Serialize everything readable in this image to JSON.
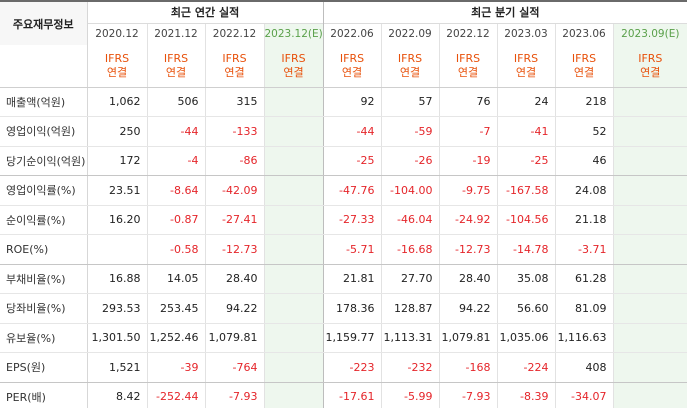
{
  "header": {
    "row_label": "주요재무정보",
    "annual_title": "최근 연간 실적",
    "quarterly_title": "최근 분기 실적",
    "periods": [
      {
        "label": "2020.12",
        "est": false
      },
      {
        "label": "2021.12",
        "est": false
      },
      {
        "label": "2022.12",
        "est": false
      },
      {
        "label": "2023.12(E)",
        "est": true
      },
      {
        "label": "2022.06",
        "est": false
      },
      {
        "label": "2022.09",
        "est": false
      },
      {
        "label": "2022.12",
        "est": false
      },
      {
        "label": "2023.03",
        "est": false
      },
      {
        "label": "2023.06",
        "est": false
      },
      {
        "label": "2023.09(E)",
        "est": true
      }
    ],
    "accounting_line1": "IFRS",
    "accounting_line2": "연결"
  },
  "rows": [
    {
      "label": "매출액(억원)",
      "values": [
        "1,062",
        "506",
        "315",
        "",
        "92",
        "57",
        "76",
        "24",
        "218",
        ""
      ]
    },
    {
      "label": "영업이익(억원)",
      "values": [
        "250",
        "-44",
        "-133",
        "",
        "-44",
        "-59",
        "-7",
        "-41",
        "52",
        ""
      ]
    },
    {
      "label": "당기순이익(억원)",
      "values": [
        "172",
        "-4",
        "-86",
        "",
        "-25",
        "-26",
        "-19",
        "-25",
        "46",
        ""
      ]
    },
    {
      "label": "영업이익률(%)",
      "values": [
        "23.51",
        "-8.64",
        "-42.09",
        "",
        "-47.76",
        "-104.00",
        "-9.75",
        "-167.58",
        "24.08",
        ""
      ]
    },
    {
      "label": "순이익률(%)",
      "values": [
        "16.20",
        "-0.87",
        "-27.41",
        "",
        "-27.33",
        "-46.04",
        "-24.92",
        "-104.56",
        "21.18",
        ""
      ]
    },
    {
      "label": "ROE(%)",
      "values": [
        "",
        "-0.58",
        "-12.73",
        "",
        "-5.71",
        "-16.68",
        "-12.73",
        "-14.78",
        "-3.71",
        ""
      ]
    },
    {
      "label": "부채비율(%)",
      "values": [
        "16.88",
        "14.05",
        "28.40",
        "",
        "21.81",
        "27.70",
        "28.40",
        "35.08",
        "61.28",
        ""
      ]
    },
    {
      "label": "당좌비율(%)",
      "values": [
        "293.53",
        "253.45",
        "94.22",
        "",
        "178.36",
        "128.87",
        "94.22",
        "56.60",
        "81.09",
        ""
      ]
    },
    {
      "label": "유보율(%)",
      "values": [
        "1,301.50",
        "1,252.46",
        "1,079.81",
        "",
        "1,159.77",
        "1,113.31",
        "1,079.81",
        "1,035.06",
        "1,116.63",
        ""
      ]
    },
    {
      "label": "EPS(원)",
      "values": [
        "1,521",
        "-39",
        "-764",
        "",
        "-223",
        "-232",
        "-168",
        "-224",
        "408",
        ""
      ]
    },
    {
      "label": "PER(배)",
      "values": [
        "8.42",
        "-252.44",
        "-7.93",
        "",
        "-17.61",
        "-5.99",
        "-7.93",
        "-8.39",
        "-34.07",
        ""
      ]
    }
  ]
}
